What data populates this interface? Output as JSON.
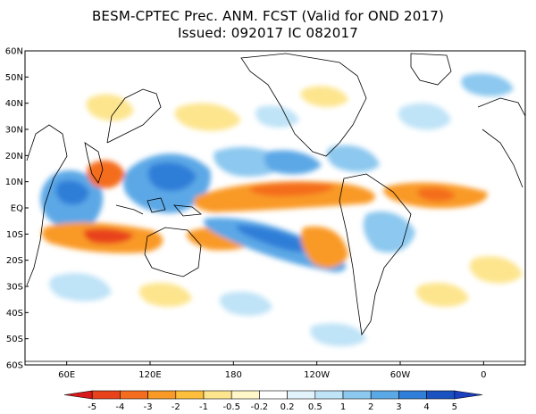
{
  "title_line1": "BESM-CPTEC Prec. ANM. FCST  (Valid for OND 2017)",
  "title_line2": "Issued:  092017 IC 082017",
  "map": {
    "lat_labels": [
      "60N",
      "50N",
      "40N",
      "30N",
      "20N",
      "10N",
      "EQ",
      "10S",
      "20S",
      "30S",
      "40S",
      "50S",
      "60S"
    ],
    "lon_labels": [
      "60E",
      "120E",
      "180",
      "120W",
      "60W",
      "0"
    ],
    "lat_range": [
      -60,
      60
    ],
    "lon_range": [
      30,
      390
    ]
  },
  "legend": {
    "labels": [
      "-5",
      "-4",
      "-3",
      "-2",
      "-1",
      "-0.5",
      "-0.2",
      "0.2",
      "0.5",
      "1",
      "2",
      "3",
      "4",
      "5"
    ],
    "colors": [
      "#d7191c",
      "#e8421b",
      "#f46d1f",
      "#f99a26",
      "#fdbe3b",
      "#fde58e",
      "#fff7c8",
      "#ffffff",
      "#e3f3fb",
      "#bfe3f7",
      "#8cc8ef",
      "#5ba8e6",
      "#2f7ed8",
      "#1a52c2",
      "#1a3fbf"
    ]
  },
  "colors": {
    "dry_strong": "#e8421b",
    "dry": "#f99a26",
    "dry_light": "#fde58e",
    "wet_light": "#bfe3f7",
    "wet": "#5ba8e6",
    "wet_strong": "#2f7ed8"
  }
}
